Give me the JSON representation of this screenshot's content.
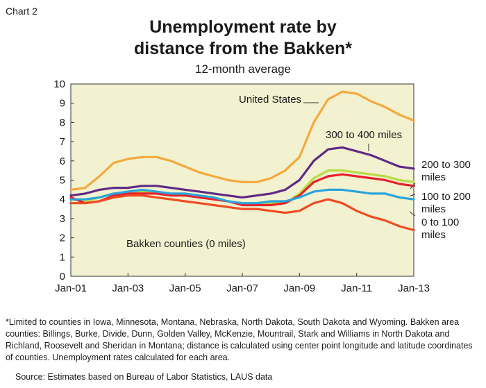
{
  "chart_label": "Chart 2",
  "title_line1": "Unemployment rate by",
  "title_line2": "distance from the Bakken*",
  "subtitle": "12-month average",
  "footnote_marker": "*",
  "footnote_text": "Limited to counties in Iowa, Minnesota, Montana, Nebraska, North Dakota, South Dakota and Wyoming. Bakken area counties: Billings, Burke, Divide, Dunn, Golden Valley, McKenzie, Mountrail, Stark and Williams in North Dakota and Richland, Roosevelt and Sheridan in Montana; distance is calculated using center point longitude and latitude coordinates of counties. Unemployment rates calculated for each area.",
  "source": "Source: Estimates based on Bureau of Labor Statistics, LAUS data",
  "chart_data": {
    "type": "line",
    "title": "Unemployment rate by distance from the Bakken*",
    "subtitle": "12-month average",
    "x_start": "2001-01",
    "x_end": "2013-01",
    "x_ticks": [
      "Jan-01",
      "Jan-03",
      "Jan-05",
      "Jan-07",
      "Jan-09",
      "Jan-11",
      "Jan-13"
    ],
    "ylim": [
      0,
      10
    ],
    "y_ticks": [
      "0",
      "1",
      "2",
      "3",
      "4",
      "5",
      "6",
      "7",
      "8",
      "9",
      "10"
    ],
    "grid": false,
    "plot_background": "#f2f1d0",
    "series": [
      {
        "name": "United States",
        "color": "#f5a93b",
        "label_lines": [
          "United States"
        ],
        "points": [
          [
            "2001-01",
            4.5
          ],
          [
            "2001-07",
            4.6
          ],
          [
            "2002-01",
            5.2
          ],
          [
            "2002-07",
            5.9
          ],
          [
            "2003-01",
            6.1
          ],
          [
            "2003-07",
            6.2
          ],
          [
            "2004-01",
            6.2
          ],
          [
            "2004-07",
            6.0
          ],
          [
            "2005-01",
            5.7
          ],
          [
            "2005-07",
            5.4
          ],
          [
            "2006-01",
            5.2
          ],
          [
            "2006-07",
            5.0
          ],
          [
            "2007-01",
            4.9
          ],
          [
            "2007-07",
            4.9
          ],
          [
            "2008-01",
            5.1
          ],
          [
            "2008-07",
            5.5
          ],
          [
            "2009-01",
            6.2
          ],
          [
            "2009-07",
            8.0
          ],
          [
            "2010-01",
            9.2
          ],
          [
            "2010-07",
            9.6
          ],
          [
            "2011-01",
            9.5
          ],
          [
            "2011-07",
            9.1
          ],
          [
            "2012-01",
            8.8
          ],
          [
            "2012-07",
            8.4
          ],
          [
            "2013-01",
            8.1
          ]
        ]
      },
      {
        "name": "300 to 400 miles",
        "color": "#5e2a86",
        "label_lines": [
          "300 to 400 miles"
        ],
        "points": [
          [
            "2001-01",
            4.2
          ],
          [
            "2001-07",
            4.3
          ],
          [
            "2002-01",
            4.5
          ],
          [
            "2002-07",
            4.6
          ],
          [
            "2003-01",
            4.6
          ],
          [
            "2003-07",
            4.7
          ],
          [
            "2004-01",
            4.7
          ],
          [
            "2004-07",
            4.6
          ],
          [
            "2005-01",
            4.5
          ],
          [
            "2005-07",
            4.4
          ],
          [
            "2006-01",
            4.3
          ],
          [
            "2006-07",
            4.2
          ],
          [
            "2007-01",
            4.1
          ],
          [
            "2007-07",
            4.2
          ],
          [
            "2008-01",
            4.3
          ],
          [
            "2008-07",
            4.5
          ],
          [
            "2009-01",
            5.0
          ],
          [
            "2009-07",
            6.0
          ],
          [
            "2010-01",
            6.6
          ],
          [
            "2010-07",
            6.7
          ],
          [
            "2011-01",
            6.5
          ],
          [
            "2011-07",
            6.3
          ],
          [
            "2012-01",
            6.0
          ],
          [
            "2012-07",
            5.7
          ],
          [
            "2013-01",
            5.6
          ]
        ]
      },
      {
        "name": "200 to 300 miles",
        "color": "#b7dc42",
        "label_lines": [
          "200 to 300",
          "miles"
        ],
        "points": [
          [
            "2001-01",
            4.0
          ],
          [
            "2001-07",
            3.9
          ],
          [
            "2002-01",
            4.1
          ],
          [
            "2002-07",
            4.3
          ],
          [
            "2003-01",
            4.3
          ],
          [
            "2003-07",
            4.4
          ],
          [
            "2004-01",
            4.3
          ],
          [
            "2004-07",
            4.2
          ],
          [
            "2005-01",
            4.2
          ],
          [
            "2005-07",
            4.1
          ],
          [
            "2006-01",
            4.0
          ],
          [
            "2006-07",
            3.9
          ],
          [
            "2007-01",
            3.8
          ],
          [
            "2007-07",
            3.8
          ],
          [
            "2008-01",
            3.8
          ],
          [
            "2008-07",
            3.8
          ],
          [
            "2009-01",
            4.3
          ],
          [
            "2009-07",
            5.1
          ],
          [
            "2010-01",
            5.5
          ],
          [
            "2010-07",
            5.5
          ],
          [
            "2011-01",
            5.4
          ],
          [
            "2011-07",
            5.3
          ],
          [
            "2012-01",
            5.2
          ],
          [
            "2012-07",
            5.0
          ],
          [
            "2013-01",
            4.9
          ]
        ]
      },
      {
        "name": "100 to 200 miles",
        "color": "#e8202a",
        "label_lines": [
          "100 to 200",
          "miles"
        ],
        "points": [
          [
            "2001-01",
            4.1
          ],
          [
            "2001-07",
            3.8
          ],
          [
            "2002-01",
            3.9
          ],
          [
            "2002-07",
            4.2
          ],
          [
            "2003-01",
            4.3
          ],
          [
            "2003-07",
            4.3
          ],
          [
            "2004-01",
            4.3
          ],
          [
            "2004-07",
            4.2
          ],
          [
            "2005-01",
            4.2
          ],
          [
            "2005-07",
            4.1
          ],
          [
            "2006-01",
            4.0
          ],
          [
            "2006-07",
            3.9
          ],
          [
            "2007-01",
            3.7
          ],
          [
            "2007-07",
            3.7
          ],
          [
            "2008-01",
            3.7
          ],
          [
            "2008-07",
            3.8
          ],
          [
            "2009-01",
            4.2
          ],
          [
            "2009-07",
            4.9
          ],
          [
            "2010-01",
            5.2
          ],
          [
            "2010-07",
            5.3
          ],
          [
            "2011-01",
            5.2
          ],
          [
            "2011-07",
            5.1
          ],
          [
            "2012-01",
            5.0
          ],
          [
            "2012-07",
            4.8
          ],
          [
            "2013-01",
            4.7
          ]
        ]
      },
      {
        "name": "0 to 100 miles",
        "color": "#2aa4dc",
        "label_lines": [
          "0 to 100",
          "miles"
        ],
        "points": [
          [
            "2001-01",
            4.0
          ],
          [
            "2001-07",
            4.0
          ],
          [
            "2002-01",
            4.1
          ],
          [
            "2002-07",
            4.3
          ],
          [
            "2003-01",
            4.4
          ],
          [
            "2003-07",
            4.5
          ],
          [
            "2004-01",
            4.4
          ],
          [
            "2004-07",
            4.3
          ],
          [
            "2005-01",
            4.3
          ],
          [
            "2005-07",
            4.2
          ],
          [
            "2006-01",
            4.1
          ],
          [
            "2006-07",
            3.9
          ],
          [
            "2007-01",
            3.8
          ],
          [
            "2007-07",
            3.8
          ],
          [
            "2008-01",
            3.9
          ],
          [
            "2008-07",
            3.9
          ],
          [
            "2009-01",
            4.1
          ],
          [
            "2009-07",
            4.4
          ],
          [
            "2010-01",
            4.5
          ],
          [
            "2010-07",
            4.5
          ],
          [
            "2011-01",
            4.4
          ],
          [
            "2011-07",
            4.3
          ],
          [
            "2012-01",
            4.3
          ],
          [
            "2012-07",
            4.1
          ],
          [
            "2013-01",
            4.0
          ]
        ]
      },
      {
        "name": "Bakken counties (0 miles)",
        "color": "#ef4b23",
        "label_lines": [
          "Bakken counties (0 miles)"
        ],
        "points": [
          [
            "2001-01",
            3.8
          ],
          [
            "2001-07",
            3.8
          ],
          [
            "2002-01",
            3.9
          ],
          [
            "2002-07",
            4.1
          ],
          [
            "2003-01",
            4.2
          ],
          [
            "2003-07",
            4.2
          ],
          [
            "2004-01",
            4.1
          ],
          [
            "2004-07",
            4.0
          ],
          [
            "2005-01",
            3.9
          ],
          [
            "2005-07",
            3.8
          ],
          [
            "2006-01",
            3.7
          ],
          [
            "2006-07",
            3.6
          ],
          [
            "2007-01",
            3.5
          ],
          [
            "2007-07",
            3.5
          ],
          [
            "2008-01",
            3.4
          ],
          [
            "2008-07",
            3.3
          ],
          [
            "2009-01",
            3.4
          ],
          [
            "2009-07",
            3.8
          ],
          [
            "2010-01",
            4.0
          ],
          [
            "2010-07",
            3.8
          ],
          [
            "2011-01",
            3.4
          ],
          [
            "2011-07",
            3.1
          ],
          [
            "2012-01",
            2.9
          ],
          [
            "2012-07",
            2.6
          ],
          [
            "2013-01",
            2.4
          ]
        ]
      }
    ]
  }
}
